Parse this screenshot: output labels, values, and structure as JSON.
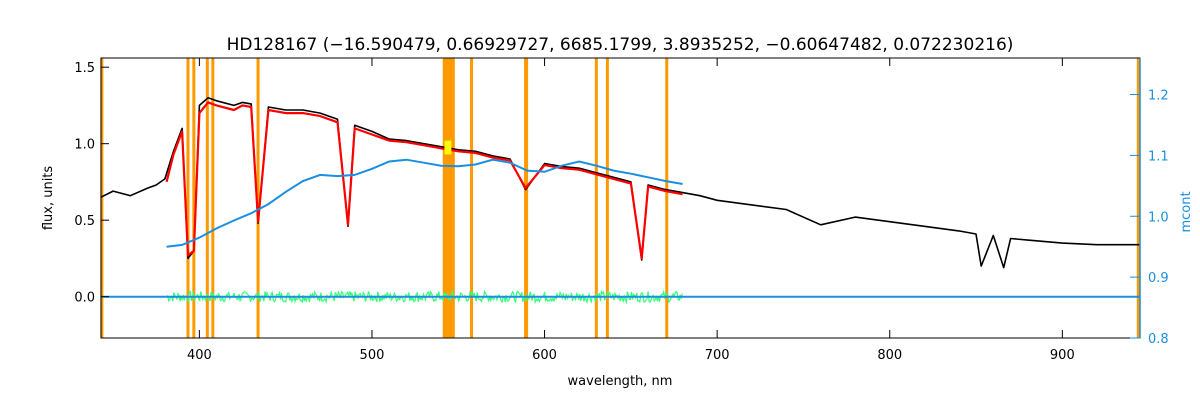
{
  "chart_data": {
    "type": "line",
    "title": "HD128167    (−16.590479, 0.66929727, 6685.1799, 3.8935252, −0.60647482, 0.072230216)",
    "xlabel": "wavelength, nm",
    "ylabel": "flux, units",
    "y2label": "mcont",
    "xlim": [
      343,
      945
    ],
    "ylim": [
      -0.27,
      1.56
    ],
    "y2lim": [
      0.8,
      1.26
    ],
    "x_ticks": [
      400,
      500,
      600,
      700,
      800,
      900
    ],
    "y_ticks": [
      0.0,
      0.5,
      1.0,
      1.5
    ],
    "y_tick_labels": [
      "0.0",
      "0.5",
      "1.0",
      "1.5"
    ],
    "y2_ticks": [
      0.8,
      0.9,
      1.0,
      1.1,
      1.2
    ],
    "y2_tick_labels": [
      "0.8",
      "0.9",
      "1.0",
      "1.1",
      "1.2"
    ],
    "grid": false,
    "colors": {
      "observed": "#000000",
      "model": "#ff0000",
      "continuum": "#1a8fe0",
      "residual": "#33ff77",
      "mask": "#ff9900",
      "highlight": "#ffff00",
      "right_axis": "#1a8fe0"
    },
    "masked_lines_nm": [
      393.4,
      396.8,
      404.6,
      407.8,
      434.0,
      557.7,
      589.0,
      589.6,
      630.0,
      636.4,
      670.8
    ],
    "masked_band_nm": [
      541,
      548
    ],
    "edge_masks_nm": [
      343.5,
      944
    ],
    "highlight_nm": [
      542,
      546
    ],
    "series": [
      {
        "key": "observed",
        "axis": "left",
        "x": [
          343,
          350,
          360,
          370,
          375,
          380,
          385,
          390,
          393.4,
          396.8,
          400,
          405,
          410,
          420,
          425,
          430,
          434,
          440,
          450,
          460,
          470,
          480,
          486.1,
          490,
          500,
          510,
          520,
          530,
          540,
          550,
          560,
          570,
          580,
          589,
          600,
          610,
          620,
          630,
          640,
          650,
          656.3,
          660,
          670,
          680,
          690,
          700,
          720,
          740,
          760,
          780,
          800,
          820,
          840,
          850,
          853,
          860,
          866,
          870,
          880,
          900,
          920,
          930,
          945
        ],
        "y": [
          0.65,
          0.69,
          0.66,
          0.71,
          0.73,
          0.77,
          0.95,
          1.1,
          0.25,
          0.3,
          1.25,
          1.3,
          1.28,
          1.25,
          1.27,
          1.26,
          0.48,
          1.24,
          1.22,
          1.22,
          1.2,
          1.16,
          0.46,
          1.12,
          1.08,
          1.03,
          1.02,
          1.0,
          0.98,
          0.96,
          0.95,
          0.92,
          0.9,
          0.7,
          0.87,
          0.85,
          0.84,
          0.81,
          0.78,
          0.75,
          0.24,
          0.73,
          0.7,
          0.68,
          0.66,
          0.63,
          0.6,
          0.57,
          0.47,
          0.52,
          0.49,
          0.46,
          0.43,
          0.41,
          0.2,
          0.4,
          0.19,
          0.38,
          0.37,
          0.35,
          0.34,
          0.34,
          0.34
        ]
      },
      {
        "key": "model",
        "axis": "left",
        "x": [
          381,
          385,
          390,
          393.4,
          396.8,
          400,
          405,
          410,
          420,
          425,
          430,
          434,
          440,
          450,
          460,
          470,
          480,
          486.1,
          490,
          500,
          510,
          520,
          530,
          540,
          550,
          560,
          570,
          580,
          589,
          600,
          610,
          620,
          630,
          640,
          650,
          656.3,
          660,
          670,
          680
        ],
        "y": [
          0.75,
          0.93,
          1.08,
          0.27,
          0.3,
          1.2,
          1.27,
          1.25,
          1.22,
          1.25,
          1.24,
          0.49,
          1.22,
          1.2,
          1.2,
          1.18,
          1.14,
          0.47,
          1.1,
          1.06,
          1.02,
          1.01,
          0.99,
          0.97,
          0.95,
          0.94,
          0.91,
          0.89,
          0.71,
          0.86,
          0.84,
          0.83,
          0.8,
          0.77,
          0.74,
          0.25,
          0.72,
          0.69,
          0.67
        ]
      },
      {
        "key": "continuum",
        "axis": "right",
        "x": [
          381,
          390,
          400,
          410,
          420,
          430,
          440,
          450,
          460,
          470,
          480,
          490,
          500,
          510,
          520,
          530,
          540,
          550,
          560,
          570,
          580,
          590,
          600,
          610,
          620,
          630,
          640,
          650,
          660,
          670,
          680
        ],
        "y": [
          0.95,
          0.953,
          0.965,
          0.98,
          0.993,
          1.005,
          1.02,
          1.04,
          1.058,
          1.068,
          1.066,
          1.068,
          1.078,
          1.09,
          1.093,
          1.088,
          1.083,
          1.082,
          1.085,
          1.093,
          1.088,
          1.075,
          1.073,
          1.083,
          1.09,
          1.083,
          1.075,
          1.07,
          1.064,
          1.058,
          1.053
        ]
      },
      {
        "key": "residual",
        "axis": "left",
        "x": [
          381,
          680
        ],
        "y": [
          0.0,
          0.0
        ],
        "noise_amplitude": 0.035
      },
      {
        "key": "zero",
        "axis": "left",
        "x": [
          343,
          945
        ],
        "y": [
          0.0,
          0.0
        ]
      }
    ]
  }
}
